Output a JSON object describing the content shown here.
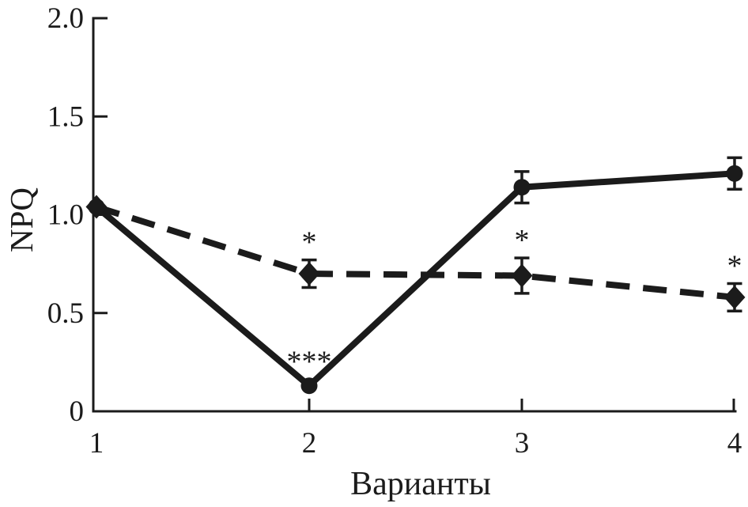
{
  "chart_data": {
    "type": "line",
    "title": "",
    "xlabel": "Варианты",
    "ylabel": "NPQ",
    "categories": [
      "1",
      "2",
      "3",
      "4"
    ],
    "ylim": [
      0,
      2.0
    ],
    "yticks": [
      {
        "value": 0,
        "label": "0"
      },
      {
        "value": 0.5,
        "label": "0.5"
      },
      {
        "value": 1.0,
        "label": "1.0"
      },
      {
        "value": 1.5,
        "label": "1.5"
      },
      {
        "value": 2.0,
        "label": "2.0"
      }
    ],
    "grid": false,
    "legend_position": "none",
    "line_color": "#1b1b1b",
    "background_color": "#ffffff",
    "series": [
      {
        "name": "solid-line-circle-markers",
        "line_style": "solid",
        "marker": "circle",
        "values": [
          1.04,
          0.13,
          1.14,
          1.21
        ],
        "errors": [
          null,
          null,
          0.08,
          0.08
        ],
        "point_labels": [
          null,
          "***",
          null,
          null
        ]
      },
      {
        "name": "dashed-line-diamond-markers",
        "line_style": "dashed",
        "marker": "diamond",
        "values": [
          1.04,
          0.7,
          0.69,
          0.58
        ],
        "errors": [
          null,
          0.07,
          0.09,
          0.07
        ],
        "point_labels": [
          null,
          "*",
          "*",
          "*"
        ]
      }
    ]
  }
}
